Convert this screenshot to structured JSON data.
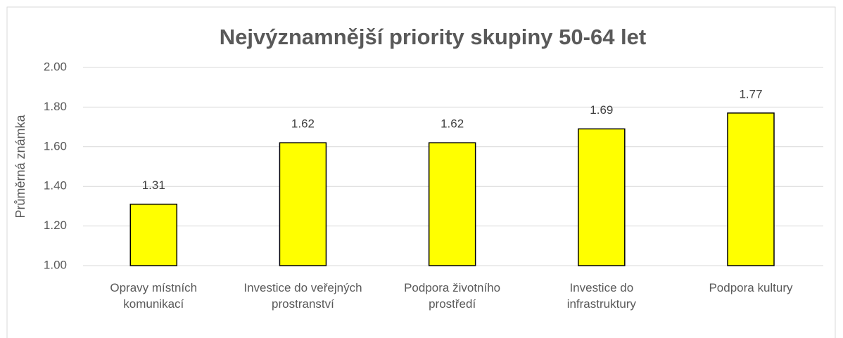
{
  "chart_data": {
    "type": "bar",
    "title": "Nejvýznamnější priority skupiny 50-64 let",
    "y_label": "Průměrná známka",
    "categories": [
      "Opravy místních komunikací",
      "Investice do veřejných prostranství",
      "Podpora životního prostředí",
      "Investice do infrastruktury",
      "Podpora kultury"
    ],
    "values": [
      1.31,
      1.62,
      1.62,
      1.69,
      1.77
    ],
    "color": "#ffff00",
    "ylim": [
      1,
      2
    ],
    "yticks": [
      {
        "value": 1,
        "label": "1.00"
      },
      {
        "value": 1.2,
        "label": "1.20"
      },
      {
        "value": 1.4,
        "label": "1.40"
      },
      {
        "value": 1.6,
        "label": "1.60"
      },
      {
        "value": 1.8,
        "label": "1.80"
      },
      {
        "value": 2,
        "label": "2.00"
      }
    ],
    "grid": true
  }
}
